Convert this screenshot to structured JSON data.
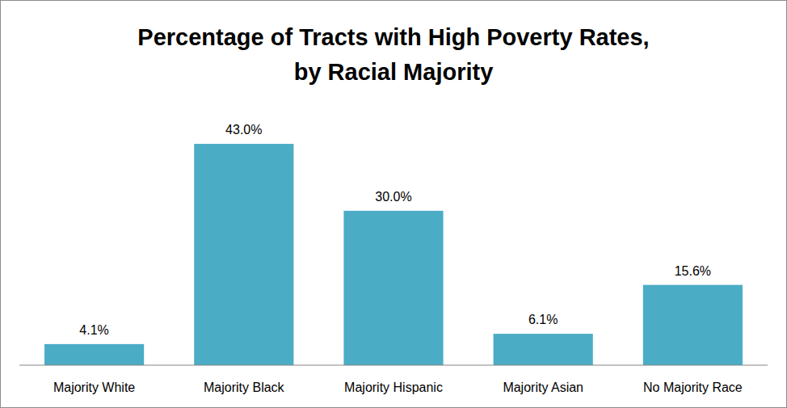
{
  "chart_data": {
    "type": "bar",
    "title": "Percentage of Tracts with High Poverty Rates,\nby Racial Majority",
    "categories": [
      "Majority White",
      "Majority Black",
      "Majority Hispanic",
      "Majority Asian",
      "No Majority Race"
    ],
    "values": [
      4.1,
      43.0,
      30.0,
      6.1,
      15.6
    ],
    "value_labels": [
      "4.1%",
      "43.0%",
      "30.0%",
      "6.1%",
      "15.6%"
    ],
    "color": "#4bacc6",
    "ylim": [
      0,
      50
    ],
    "grid": false,
    "data_labels": true,
    "tick_labels": "x"
  }
}
